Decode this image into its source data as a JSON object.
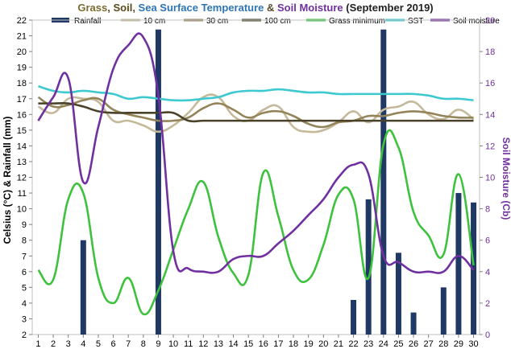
{
  "chart_data": {
    "type": "line",
    "title": {
      "parts": [
        {
          "text": "Grass",
          "color": "#7b6b2f"
        },
        {
          "text": ", ",
          "color": "#5a4a2a"
        },
        {
          "text": "Soil",
          "color": "#5a4a1a"
        },
        {
          "text": ", ",
          "color": "#5a4a2a"
        },
        {
          "text": "Sea Surface Temperature",
          "color": "#2e75b6"
        },
        {
          "text": " & ",
          "color": "#5a4a2a"
        },
        {
          "text": "Soil Moisture",
          "color": "#7030a0"
        },
        {
          "text": " (September 2019)",
          "color": "#1f1f1f"
        }
      ]
    },
    "ylabel_left": "Celsius (°C) & Rainfall (mm)",
    "ylabel_right": "Soil Moisture (Cb)",
    "x": [
      1,
      2,
      3,
      4,
      5,
      6,
      7,
      8,
      9,
      10,
      11,
      12,
      13,
      14,
      15,
      16,
      17,
      18,
      19,
      20,
      21,
      22,
      23,
      24,
      25,
      26,
      27,
      28,
      29,
      30
    ],
    "xlim": [
      0.6,
      30.4
    ],
    "ylim_left": [
      2,
      22
    ],
    "ylim_right": [
      0,
      20
    ],
    "yticks_left": [
      2,
      3,
      4,
      5,
      6,
      7,
      8,
      9,
      10,
      11,
      12,
      13,
      14,
      15,
      16,
      17,
      18,
      19,
      20,
      21,
      22
    ],
    "yticks_right": [
      0,
      2,
      4,
      6,
      8,
      10,
      12,
      14,
      16,
      18,
      20
    ],
    "legend_position": "top",
    "bars": {
      "name": "Rainfall",
      "color": "#1f3864",
      "values": [
        0,
        0,
        0,
        8.0,
        0,
        0,
        0,
        0,
        21.4,
        0,
        0,
        0,
        0,
        0,
        0,
        0,
        0,
        0,
        0,
        0,
        0,
        4.2,
        10.6,
        21.4,
        7.2,
        3.4,
        0,
        5.0,
        11.0,
        10.4
      ]
    },
    "series": [
      {
        "name": "10 cm",
        "color": "#c4b99a",
        "axis": "left",
        "width": 2.6,
        "values": [
          16.5,
          16.1,
          17.0,
          17.0,
          16.8,
          15.6,
          15.6,
          15.3,
          14.9,
          15.3,
          16.1,
          17.1,
          17.1,
          15.9,
          15.6,
          16.3,
          16.5,
          15.2,
          14.9,
          15.0,
          15.5,
          16.2,
          15.5,
          16.3,
          16.5,
          16.8,
          16.0,
          15.7,
          16.3,
          15.7
        ]
      },
      {
        "name": "30 cm",
        "color": "#94845a",
        "axis": "left",
        "width": 2.6,
        "values": [
          17.1,
          16.5,
          16.6,
          16.9,
          17.0,
          16.3,
          16.0,
          15.8,
          15.6,
          15.6,
          15.8,
          16.4,
          16.7,
          16.3,
          15.8,
          16.1,
          16.2,
          15.9,
          15.4,
          15.2,
          15.5,
          15.6,
          15.9,
          15.9,
          16.1,
          16.2,
          16.1,
          15.9,
          15.8,
          15.8
        ]
      },
      {
        "name": "100 cm",
        "color": "#4a4228",
        "axis": "left",
        "width": 2.6,
        "values": [
          16.7,
          16.7,
          16.7,
          16.5,
          16.2,
          16.1,
          16.1,
          16.1,
          16.1,
          16.1,
          15.6,
          15.6,
          15.6,
          15.6,
          15.6,
          15.6,
          15.6,
          15.6,
          15.6,
          15.6,
          15.6,
          15.6,
          15.6,
          15.6,
          15.6,
          15.6,
          15.6,
          15.6,
          15.6,
          15.6
        ]
      },
      {
        "name": "Grass minimum",
        "color": "#3cc23c",
        "axis": "left",
        "width": 2.6,
        "values": [
          6.1,
          5.5,
          10.6,
          11.0,
          5.6,
          4.0,
          5.6,
          3.3,
          4.8,
          7.4,
          10.0,
          11.7,
          8.2,
          5.9,
          5.8,
          12.3,
          9.5,
          6.1,
          5.5,
          7.7,
          10.9,
          10.6,
          5.6,
          14.1,
          13.9,
          9.8,
          8.3,
          7.1,
          12.2,
          6.4
        ]
      },
      {
        "name": "SST",
        "color": "#3ec9d0",
        "axis": "left",
        "width": 2.6,
        "values": [
          17.8,
          17.5,
          17.4,
          17.5,
          17.4,
          17.3,
          17.0,
          17.1,
          17.0,
          16.9,
          16.9,
          17.0,
          17.1,
          17.4,
          17.5,
          17.5,
          17.6,
          17.5,
          17.4,
          17.4,
          17.3,
          17.3,
          17.3,
          17.3,
          17.3,
          17.3,
          17.2,
          17.0,
          17.0,
          16.9
        ]
      },
      {
        "name": "Soil moisture",
        "color": "#7030a0",
        "axis": "right",
        "width": 2.6,
        "values": [
          13.6,
          15.1,
          16.3,
          9.7,
          13.2,
          16.9,
          18.4,
          18.9,
          15.2,
          5.3,
          4.2,
          4.0,
          4.0,
          4.8,
          5.0,
          5.0,
          5.8,
          6.6,
          7.6,
          8.6,
          10.0,
          10.8,
          10.2,
          5.0,
          4.6,
          4.0,
          4.0,
          4.0,
          5.0,
          4.1
        ]
      }
    ]
  }
}
